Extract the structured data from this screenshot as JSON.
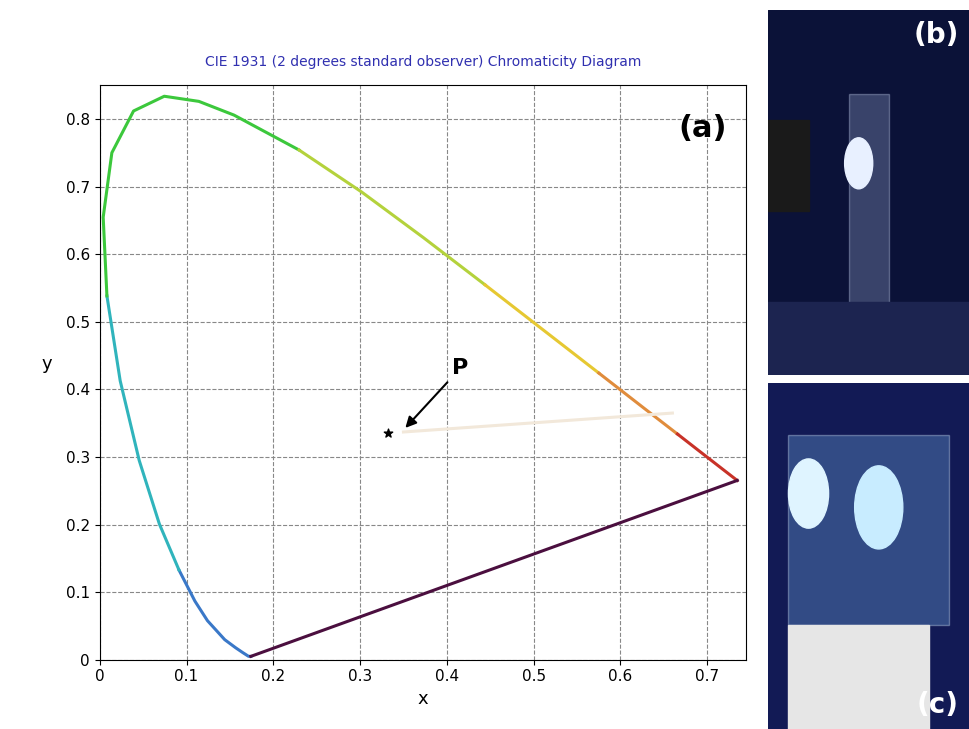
{
  "chart_data": {
    "type": "line",
    "title": "CIE 1931 (2 degrees standard observer) Chromaticity Diagram",
    "x_label": "x",
    "y_label": "y",
    "xlim": [
      0,
      0.745
    ],
    "ylim": [
      0,
      0.85
    ],
    "xticks": [
      0,
      0.1,
      0.2,
      0.3,
      0.4,
      0.5,
      0.6,
      0.7
    ],
    "yticks": [
      0,
      0.1,
      0.2,
      0.3,
      0.4,
      0.5,
      0.6,
      0.7,
      0.8
    ],
    "grid": true,
    "panel_label": "(a)",
    "series": [
      {
        "color": "#3a78c8",
        "x": [
          0.1741,
          0.1714,
          0.1644,
          0.1566,
          0.144,
          0.1241,
          0.1096,
          0.0913
        ],
        "values": [
          0.005,
          0.0051,
          0.0109,
          0.0177,
          0.0297,
          0.0578,
          0.0868,
          0.1327
        ]
      },
      {
        "color": "#30b4bc",
        "x": [
          0.0913,
          0.0687,
          0.0454,
          0.0235,
          0.0082
        ],
        "values": [
          0.1327,
          0.2007,
          0.295,
          0.4127,
          0.5384
        ]
      },
      {
        "color": "#3cc83c",
        "x": [
          0.0082,
          0.0039,
          0.0139,
          0.0389,
          0.0743,
          0.1142,
          0.1547,
          0.2296
        ],
        "values": [
          0.5384,
          0.6548,
          0.7502,
          0.812,
          0.8338,
          0.8262,
          0.8059,
          0.7543
        ]
      },
      {
        "color": "#b4d23c",
        "x": [
          0.2296,
          0.3016,
          0.3731,
          0.4441
        ],
        "values": [
          0.7543,
          0.6923,
          0.6245,
          0.5547
        ]
      },
      {
        "color": "#e6c832",
        "x": [
          0.4441,
          0.5125,
          0.5752
        ],
        "values": [
          0.5547,
          0.4866,
          0.4242
        ]
      },
      {
        "color": "#e08c3c",
        "x": [
          0.5752,
          0.627,
          0.6658
        ],
        "values": [
          0.4242,
          0.3725,
          0.334
        ]
      },
      {
        "color": "#c83228",
        "x": [
          0.6658,
          0.6915,
          0.719,
          0.7347
        ],
        "values": [
          0.334,
          0.3083,
          0.2809,
          0.2653
        ]
      },
      {
        "color": "#4b0f3f",
        "x": [
          0.7347,
          0.1741
        ],
        "values": [
          0.2653,
          0.005
        ]
      },
      {
        "color": "#f2e8da",
        "x": [
          0.35,
          0.66
        ],
        "values": [
          0.337,
          0.365
        ]
      },
      {
        "type": "scatter",
        "marker": "star",
        "color": "#000000",
        "x": [
          0.332
        ],
        "values": [
          0.336
        ]
      }
    ],
    "annotations": [
      {
        "text": "P",
        "x": 0.35,
        "y": 0.34
      }
    ]
  },
  "photos": [
    {
      "label": "(b)"
    },
    {
      "label": "(c)"
    }
  ]
}
